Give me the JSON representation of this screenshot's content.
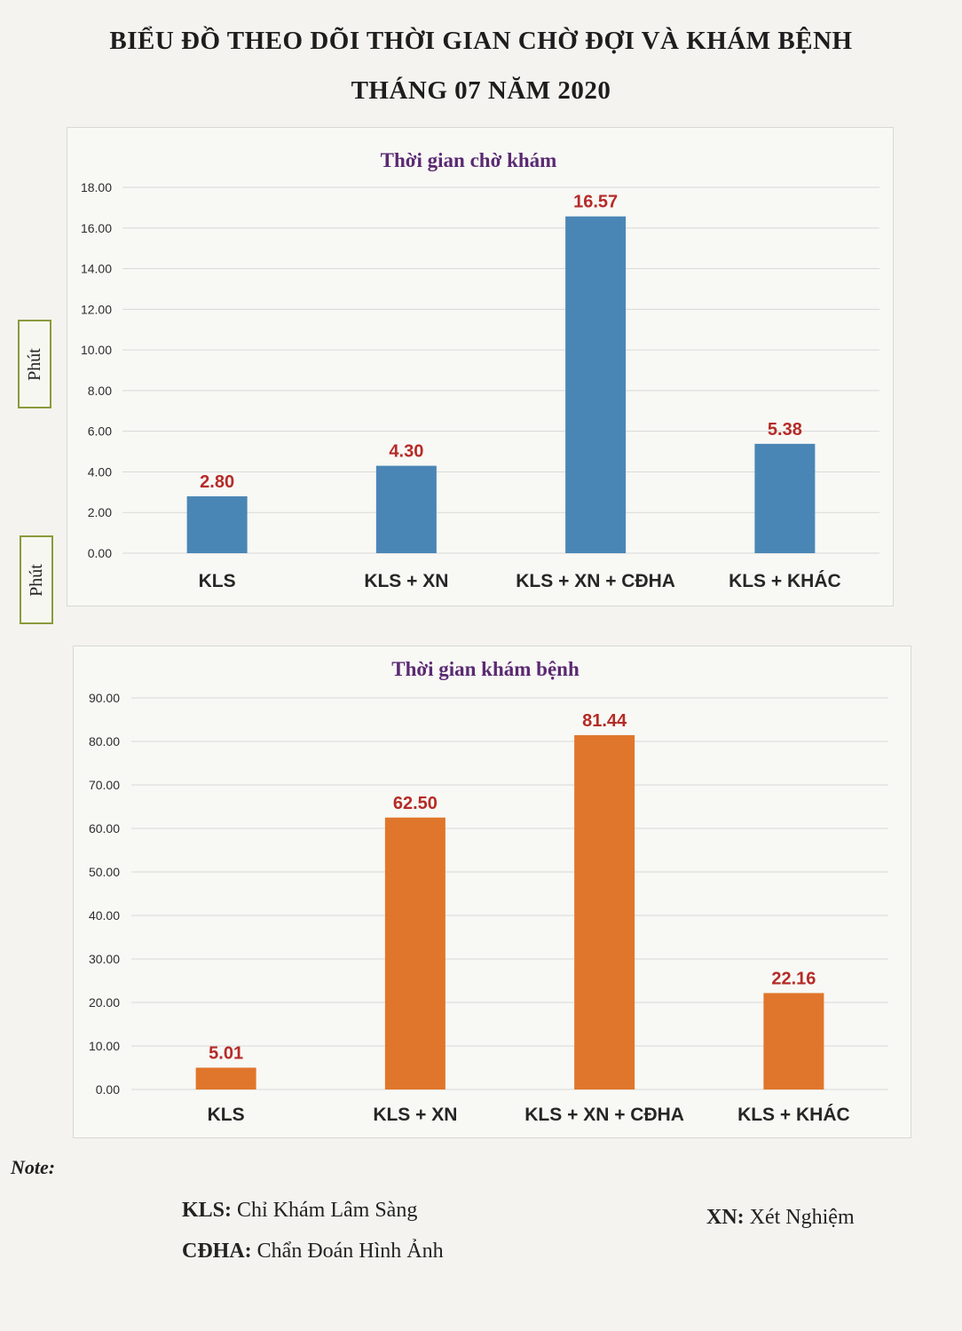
{
  "page": {
    "title_line1": "BIỂU ĐỒ THEO DÕI THỜI GIAN CHỜ ĐỢI VÀ KHÁM BỆNH",
    "title_line2": "THÁNG 07 NĂM 2020",
    "unit_label": "Phút"
  },
  "chart_data": [
    {
      "type": "bar",
      "title": "Thời gian chờ khám",
      "categories": [
        "KLS",
        "KLS + XN",
        "KLS + XN + CĐHA",
        "KLS + KHÁC"
      ],
      "values": [
        2.8,
        4.3,
        16.57,
        5.38
      ],
      "value_labels": [
        "2.80",
        "4.30",
        "16.57",
        "5.38"
      ],
      "ylim": [
        0,
        18
      ],
      "yticks": [
        "0.00",
        "2.00",
        "4.00",
        "6.00",
        "8.00",
        "10.00",
        "12.00",
        "14.00",
        "16.00",
        "18.00"
      ],
      "ylabel": "Phút",
      "grid": true,
      "bar_color": "#4a86b5",
      "label_color": "#b52b27"
    },
    {
      "type": "bar",
      "title": "Thời gian khám bệnh",
      "categories": [
        "KLS",
        "KLS + XN",
        "KLS + XN + CĐHA",
        "KLS + KHÁC"
      ],
      "values": [
        5.01,
        62.5,
        81.44,
        22.16
      ],
      "value_labels": [
        "5.01",
        "62.50",
        "81.44",
        "22.16"
      ],
      "ylim": [
        0,
        90
      ],
      "yticks": [
        "0.00",
        "10.00",
        "20.00",
        "30.00",
        "40.00",
        "50.00",
        "60.00",
        "70.00",
        "80.00",
        "90.00"
      ],
      "ylabel": "Phút",
      "grid": true,
      "bar_color": "#e0762b",
      "label_color": "#b52b27"
    }
  ],
  "notes": {
    "heading": "Note:",
    "kls_key": "KLS:",
    "kls_value": "Chỉ Khám Lâm Sàng",
    "xn_key": "XN:",
    "xn_value": "Xét Nghiệm",
    "cdha_key": "CĐHA:",
    "cdha_value": "Chẩn Đoán Hình Ảnh"
  }
}
